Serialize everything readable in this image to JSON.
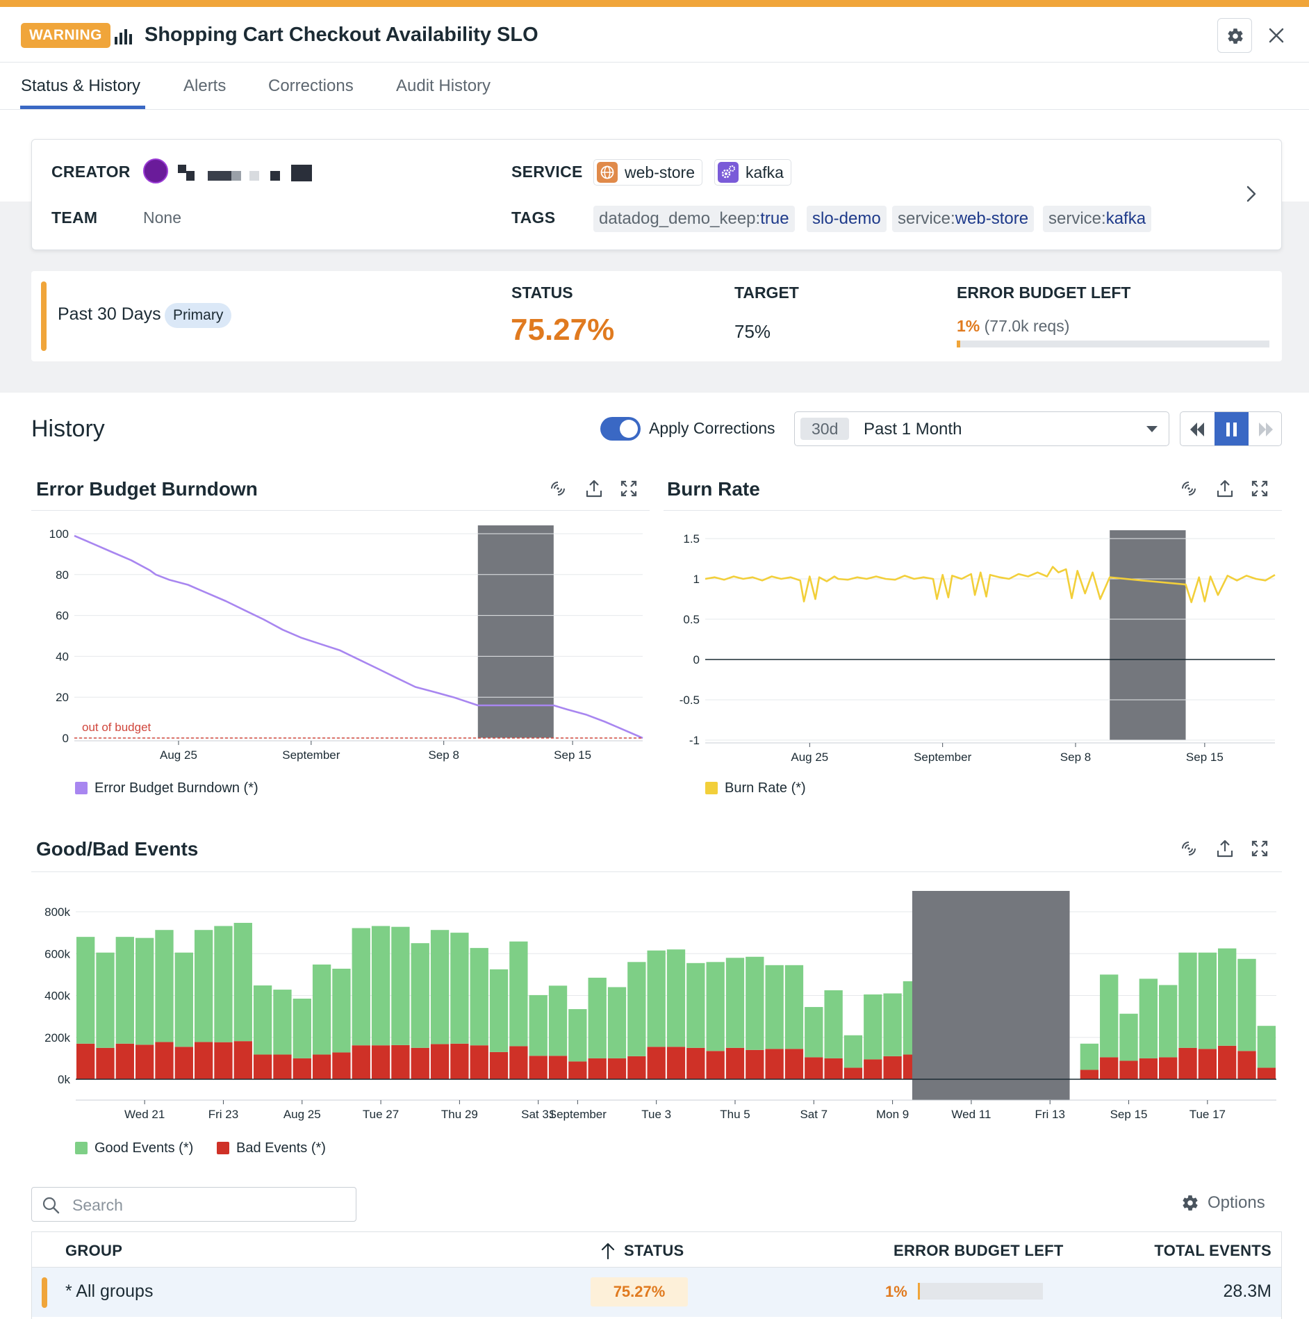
{
  "header": {
    "badge": "WARNING",
    "title": "Shopping Cart Checkout Availability SLO",
    "settings_icon": "gear-icon",
    "close_icon": "close-icon"
  },
  "tabs": [
    {
      "label": "Status & History",
      "active": true
    },
    {
      "label": "Alerts",
      "active": false
    },
    {
      "label": "Corrections",
      "active": false
    },
    {
      "label": "Audit History",
      "active": false
    }
  ],
  "meta": {
    "creator_label": "CREATOR",
    "team_label": "TEAM",
    "team_value": "None",
    "service_label": "SERVICE",
    "services": [
      {
        "name": "web-store",
        "icon": "globe-icon",
        "color": "#e08a4a"
      },
      {
        "name": "kafka",
        "icon": "cogs-icon",
        "color": "#7a5bd8"
      }
    ],
    "tags_label": "TAGS",
    "tags": [
      {
        "key": "datadog_demo_keep:",
        "value": "true"
      },
      {
        "key": "",
        "value": "slo-demo"
      },
      {
        "key": "service:",
        "value": "web-store"
      },
      {
        "key": "service:",
        "value": "kafka"
      }
    ]
  },
  "status_card": {
    "period": "Past 30 Days",
    "badge": "Primary",
    "status_label": "STATUS",
    "status_value": "75.27%",
    "target_label": "TARGET",
    "target_value": "75%",
    "eb_label": "ERROR BUDGET LEFT",
    "eb_pct": "1%",
    "eb_reqs": " (77.0k reqs)",
    "eb_fraction": 0.01
  },
  "history": {
    "title": "History",
    "apply_corrections": "Apply Corrections",
    "apply_corrections_on": true,
    "time_chip": "30d",
    "time_label": "Past 1 Month"
  },
  "widgets": {
    "burndown_title": "Error Budget Burndown",
    "burnrate_title": "Burn Rate",
    "events_title": "Good/Bad Events"
  },
  "chart_data": [
    {
      "type": "line",
      "title": "Error Budget Burndown",
      "x_tick_labels": [
        "Aug 25",
        "September",
        "Sep 8",
        "Sep 15"
      ],
      "y_ticks": [
        0,
        20,
        40,
        60,
        80,
        100
      ],
      "ylim": [
        0,
        100
      ],
      "x_day_range": [
        0,
        30
      ],
      "tick_days": [
        5.5,
        12.5,
        19.5,
        26.3
      ],
      "shaded_day_range": [
        21.3,
        25.3
      ],
      "annotation": "out of budget",
      "series": [
        {
          "name": "Error Budget Burndown (*)",
          "color": "#a886f0",
          "x": [
            0,
            1,
            2,
            3,
            4,
            4.3,
            5,
            6,
            6.5,
            7,
            8,
            9,
            10,
            11,
            12,
            13,
            14,
            15,
            16,
            17,
            18,
            19,
            20,
            21.3,
            25.3,
            26,
            27,
            28,
            29,
            30
          ],
          "y": [
            99,
            95,
            91,
            87,
            82,
            80,
            77.5,
            75,
            73,
            71,
            67,
            62.5,
            58,
            53,
            49,
            46,
            43,
            38.5,
            34,
            29.5,
            25,
            22.5,
            20,
            16,
            16,
            14,
            11.5,
            8,
            4,
            0
          ]
        }
      ]
    },
    {
      "type": "line",
      "title": "Burn Rate",
      "x_tick_labels": [
        "Aug 25",
        "September",
        "Sep 8",
        "Sep 15"
      ],
      "y_ticks": [
        1.5,
        1,
        0.5,
        0,
        -0.5,
        -1
      ],
      "y_tick_labels": [
        "1.5",
        "1",
        "0.5",
        "0",
        "-0.5",
        "-1"
      ],
      "ylim": [
        -1,
        1.5
      ],
      "x_day_range": [
        0,
        30
      ],
      "tick_days": [
        5.5,
        12.5,
        19.5,
        26.3
      ],
      "shaded_day_range": [
        21.3,
        25.3
      ],
      "series": [
        {
          "name": "Burn Rate (*)",
          "color": "#f2cf3a",
          "x": [
            0,
            0.5,
            1,
            1.5,
            2,
            2.5,
            3,
            3.5,
            4,
            4.5,
            5,
            5.2,
            5.5,
            5.8,
            6,
            6.4,
            6.8,
            7,
            7.5,
            8,
            8.5,
            9,
            9.5,
            10,
            10.5,
            11,
            11.5,
            12,
            12.2,
            12.5,
            12.8,
            13,
            13.5,
            14,
            14.2,
            14.5,
            14.8,
            15,
            15.5,
            16,
            16.5,
            17,
            17.5,
            18,
            18.3,
            18.6,
            19,
            19.3,
            19.6,
            20,
            20.4,
            20.8,
            21.3,
            23,
            25.3,
            25.6,
            26,
            26.3,
            26.6,
            27,
            27.5,
            28,
            28.5,
            29,
            29.5,
            30
          ],
          "y": [
            1.0,
            1.02,
            0.99,
            1.03,
            1.0,
            1.02,
            0.98,
            1.03,
            1.0,
            1.02,
            0.98,
            0.72,
            1.03,
            0.75,
            1.02,
            0.97,
            1.03,
            1.0,
            0.99,
            1.02,
            1.0,
            1.03,
            1.0,
            0.99,
            1.04,
            1.0,
            1.02,
            1.0,
            0.75,
            1.05,
            0.77,
            1.04,
            1.0,
            1.06,
            0.8,
            1.08,
            0.78,
            1.05,
            1.02,
            1.0,
            1.06,
            1.03,
            1.08,
            1.03,
            1.15,
            1.08,
            1.12,
            0.76,
            1.1,
            0.82,
            1.08,
            0.75,
            1.02,
            0.98,
            0.93,
            0.71,
            1.02,
            0.72,
            1.03,
            0.8,
            1.04,
            0.98,
            1.04,
            1.0,
            0.98,
            1.05
          ]
        }
      ]
    },
    {
      "type": "bar",
      "title": "Good/Bad Events",
      "stacked": true,
      "x_tick_labels": [
        "Wed 21",
        "Fri 23",
        "Aug 25",
        "Tue 27",
        "Thu 29",
        "Sat 31",
        "September",
        "Tue 3",
        "Thu 5",
        "Sat 7",
        "Mon 9",
        "Wed 11",
        "Fri 13",
        "Sep 15",
        "Tue 17"
      ],
      "tick_bar_index": [
        3,
        7,
        11,
        15,
        19,
        23,
        25,
        29,
        33,
        37,
        41,
        45,
        49,
        53,
        57
      ],
      "y_ticks": [
        0,
        200000,
        400000,
        600000,
        800000
      ],
      "y_tick_labels": [
        "0k",
        "200k",
        "400k",
        "600k",
        "800k"
      ],
      "ylim": [
        0,
        800000
      ],
      "shaded_bar_range": [
        42.5,
        50.5
      ],
      "series": [
        {
          "name": "Good Events (*)",
          "color": "#7ecf86",
          "values": [
            510000,
            455000,
            510000,
            510000,
            535000,
            450000,
            535000,
            555000,
            565000,
            330000,
            310000,
            285000,
            430000,
            400000,
            560000,
            570000,
            565000,
            500000,
            545000,
            530000,
            465000,
            395000,
            500000,
            290000,
            335000,
            250000,
            385000,
            340000,
            450000,
            460000,
            465000,
            405000,
            425000,
            430000,
            445000,
            400000,
            400000,
            240000,
            325000,
            155000,
            310000,
            300000,
            350000,
            100000,
            0,
            0,
            0,
            0,
            0,
            0,
            0,
            125000,
            395000,
            225000,
            380000,
            345000,
            455000,
            460000,
            465000,
            440000,
            200000
          ],
          "note": ""
        },
        {
          "name": "Bad Events (*)",
          "color": "#cf3127",
          "values": [
            170000,
            150000,
            170000,
            165000,
            178000,
            155000,
            178000,
            177000,
            182000,
            118000,
            118000,
            100000,
            118000,
            128000,
            162000,
            162000,
            163000,
            150000,
            168000,
            170000,
            162000,
            130000,
            158000,
            112000,
            112000,
            85000,
            100000,
            100000,
            110000,
            155000,
            155000,
            150000,
            135000,
            150000,
            140000,
            145000,
            145000,
            105000,
            100000,
            55000,
            95000,
            110000,
            118000,
            40000,
            0,
            0,
            0,
            0,
            0,
            0,
            0,
            45000,
            105000,
            88000,
            100000,
            105000,
            150000,
            145000,
            160000,
            135000,
            55000
          ]
        }
      ]
    }
  ],
  "search": {
    "placeholder": "Search"
  },
  "options_label": "Options",
  "table": {
    "headers": {
      "group": "GROUP",
      "status": "STATUS",
      "eb": "ERROR BUDGET LEFT",
      "total": "TOTAL EVENTS"
    },
    "rows": [
      {
        "group": "* All groups",
        "status": "75.27%",
        "eb": "1%",
        "eb_fraction": 0.01,
        "total": "28.3M"
      }
    ]
  }
}
